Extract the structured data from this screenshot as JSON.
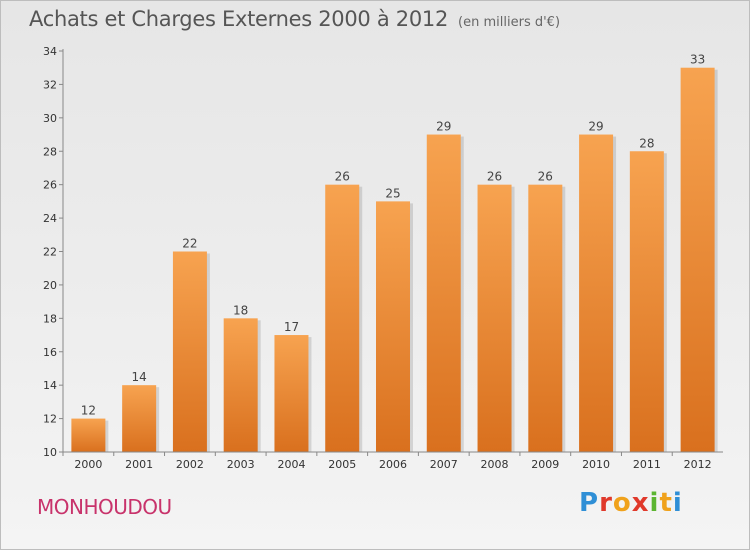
{
  "title": "Achats et Charges Externes 2000 à 2012",
  "unit_note": "(en milliers d'€)",
  "commune": "MONHOUDOU",
  "logo": {
    "letters": [
      "P",
      "r",
      "o",
      "x",
      "i",
      "t",
      "i"
    ]
  },
  "colors": {
    "bar_light": "#f7a350",
    "bar_dark": "#d9701e",
    "commune": "#c8336b",
    "axis": "#888888"
  },
  "chart_data": {
    "type": "bar",
    "categories": [
      "2000",
      "2001",
      "2002",
      "2003",
      "2004",
      "2005",
      "2006",
      "2007",
      "2008",
      "2009",
      "2010",
      "2011",
      "2012"
    ],
    "values": [
      12,
      14,
      22,
      18,
      17,
      26,
      25,
      29,
      26,
      26,
      29,
      28,
      33
    ],
    "data_labels": [
      "12",
      "14",
      "22",
      "18",
      "17",
      "26",
      "25",
      "29",
      "26",
      "26",
      "29",
      "28",
      "33"
    ],
    "yticks": [
      10,
      12,
      14,
      16,
      18,
      20,
      22,
      24,
      26,
      28,
      30,
      32,
      34
    ],
    "ylim": [
      10,
      34
    ],
    "grid": false
  }
}
